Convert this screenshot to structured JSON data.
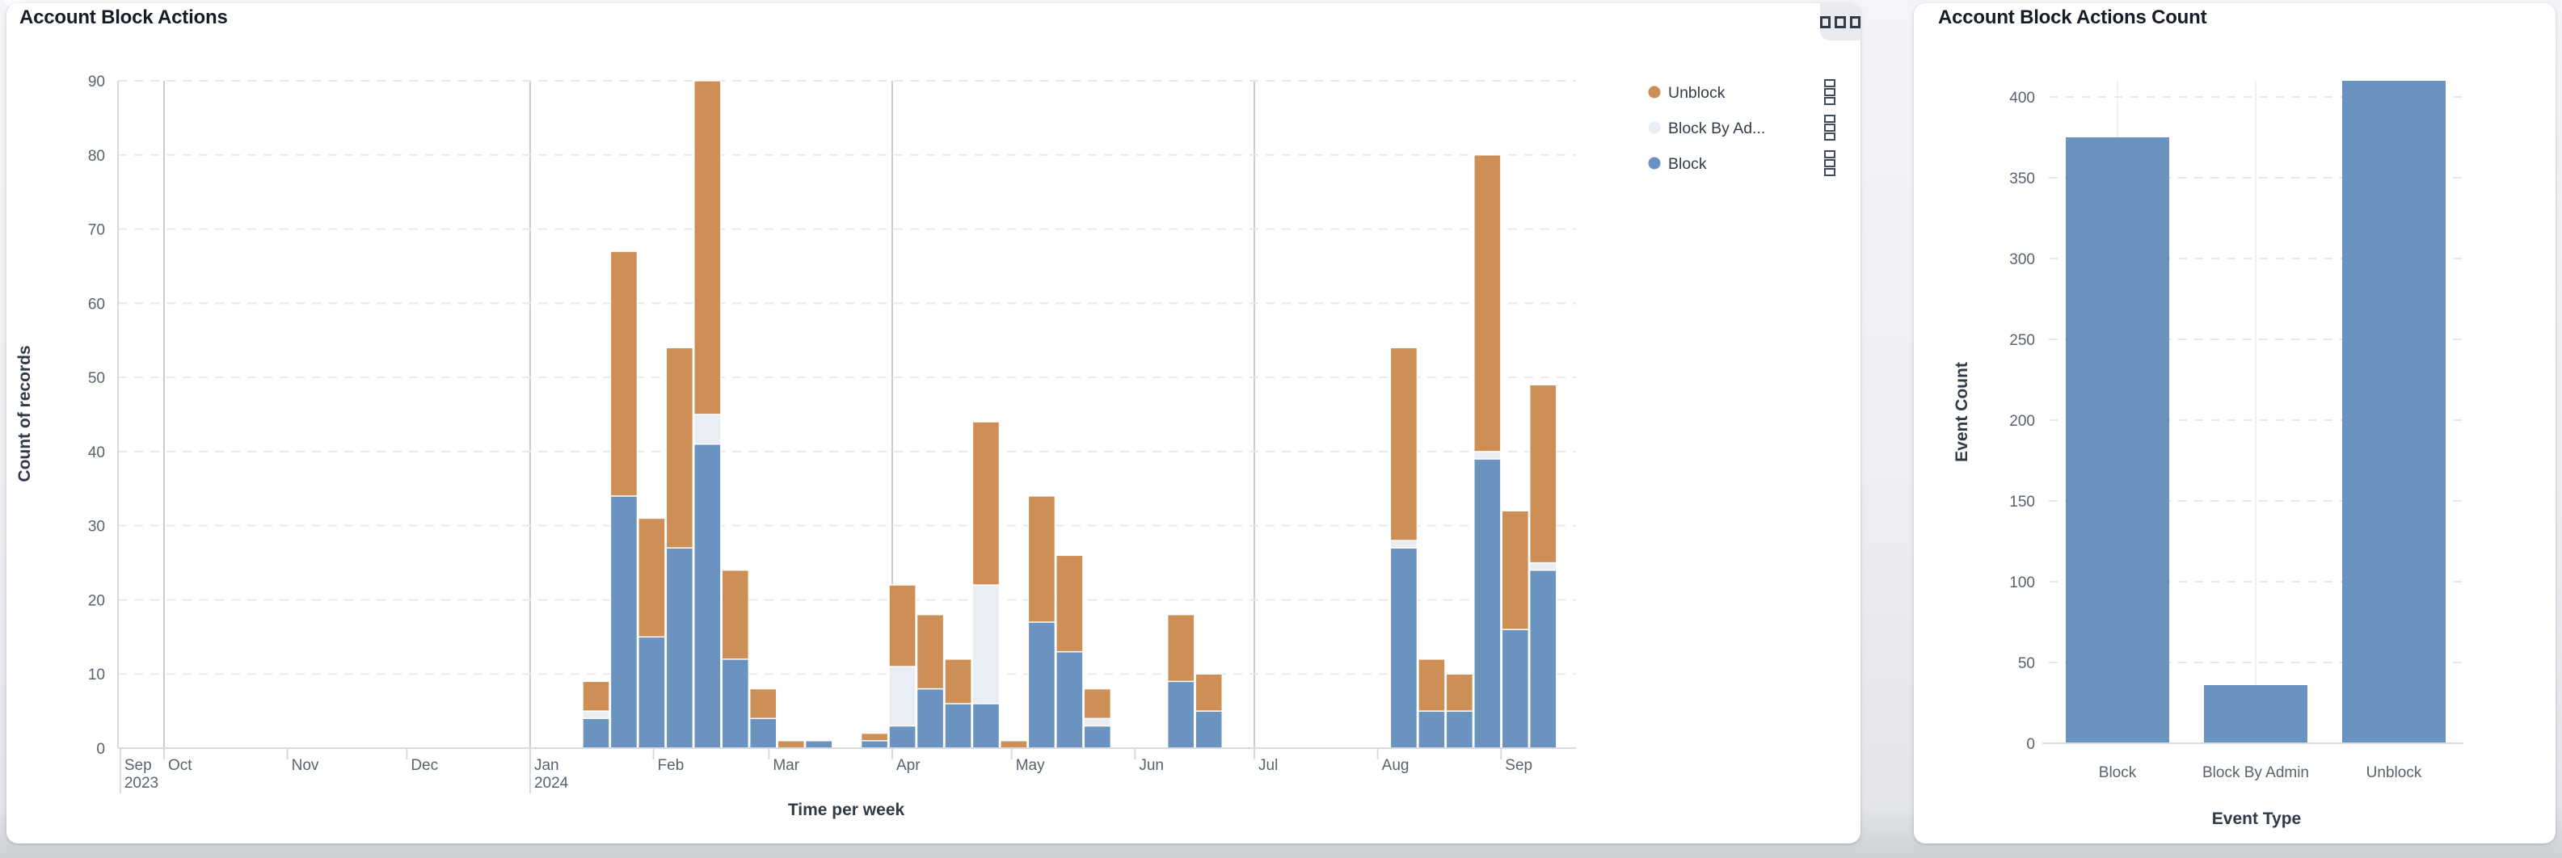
{
  "colors": {
    "block": "#6b93bf",
    "block_by_admin": "#e9edf4",
    "unblock": "#cd8f55",
    "grid_dashed": "#e6e8ec",
    "axis_line": "#d7dade",
    "quarter_line": "#c9cdd3",
    "tick_text": "#59626f",
    "legend_text": "#343c49",
    "title_text": "#161b25"
  },
  "chart_data": [
    {
      "id": "account-block-actions",
      "type": "bar",
      "stacked": true,
      "title": "Account Block Actions",
      "xlabel": "Time per week",
      "ylabel": "Count of records",
      "ylim": [
        0,
        90
      ],
      "yticks": [
        0,
        10,
        20,
        30,
        40,
        50,
        60,
        70,
        80,
        90
      ],
      "grid": true,
      "legend_position": "right",
      "series": [
        {
          "name": "Block",
          "color": "#6b93bf"
        },
        {
          "name": "Block By Admin",
          "color": "#e9edf4"
        },
        {
          "name": "Unblock",
          "color": "#cd8f55"
        }
      ],
      "legend": [
        {
          "label": "Unblock",
          "color": "#cd8f55"
        },
        {
          "label": "Block By Ad...",
          "color": "#e9edf4"
        },
        {
          "label": "Block",
          "color": "#6b93bf"
        }
      ],
      "x_time_ticks": [
        {
          "date": "2023-09-20",
          "label": "Sep",
          "sublabel": "2023",
          "long": true
        },
        {
          "date": "2023-10-01",
          "label": "Oct"
        },
        {
          "date": "2023-11-01",
          "label": "Nov"
        },
        {
          "date": "2023-12-01",
          "label": "Dec"
        },
        {
          "date": "2024-01-01",
          "label": "Jan",
          "sublabel": "2024",
          "long": true
        },
        {
          "date": "2024-02-01",
          "label": "Feb"
        },
        {
          "date": "2024-03-01",
          "label": "Mar"
        },
        {
          "date": "2024-04-01",
          "label": "Apr"
        },
        {
          "date": "2024-05-01",
          "label": "May"
        },
        {
          "date": "2024-06-01",
          "label": "Jun"
        },
        {
          "date": "2024-07-01",
          "label": "Jul"
        },
        {
          "date": "2024-08-01",
          "label": "Aug"
        },
        {
          "date": "2024-09-01",
          "label": "Sep"
        }
      ],
      "quarter_lines": [
        "2023-10-01",
        "2024-01-01",
        "2024-04-01",
        "2024-07-01"
      ],
      "weeks": [
        {
          "week_start": "2024-01-14",
          "Block": 4,
          "Block By Admin": 1,
          "Unblock": 4
        },
        {
          "week_start": "2024-01-21",
          "Block": 34,
          "Block By Admin": 0,
          "Unblock": 33
        },
        {
          "week_start": "2024-01-28",
          "Block": 15,
          "Block By Admin": 0,
          "Unblock": 16
        },
        {
          "week_start": "2024-02-04",
          "Block": 27,
          "Block By Admin": 0,
          "Unblock": 27
        },
        {
          "week_start": "2024-02-11",
          "Block": 41,
          "Block By Admin": 4,
          "Unblock": 45
        },
        {
          "week_start": "2024-02-18",
          "Block": 12,
          "Block By Admin": 0,
          "Unblock": 12
        },
        {
          "week_start": "2024-02-25",
          "Block": 4,
          "Block By Admin": 0,
          "Unblock": 4
        },
        {
          "week_start": "2024-03-03",
          "Block": 0,
          "Block By Admin": 0,
          "Unblock": 1
        },
        {
          "week_start": "2024-03-10",
          "Block": 1,
          "Block By Admin": 0,
          "Unblock": 0
        },
        {
          "week_start": "2024-03-24",
          "Block": 1,
          "Block By Admin": 0,
          "Unblock": 1
        },
        {
          "week_start": "2024-03-31",
          "Block": 3,
          "Block By Admin": 8,
          "Unblock": 11
        },
        {
          "week_start": "2024-04-07",
          "Block": 8,
          "Block By Admin": 0,
          "Unblock": 10
        },
        {
          "week_start": "2024-04-14",
          "Block": 6,
          "Block By Admin": 0,
          "Unblock": 6
        },
        {
          "week_start": "2024-04-21",
          "Block": 6,
          "Block By Admin": 16,
          "Unblock": 22
        },
        {
          "week_start": "2024-04-28",
          "Block": 0,
          "Block By Admin": 0,
          "Unblock": 1
        },
        {
          "week_start": "2024-05-05",
          "Block": 17,
          "Block By Admin": 0,
          "Unblock": 17
        },
        {
          "week_start": "2024-05-12",
          "Block": 13,
          "Block By Admin": 0,
          "Unblock": 13
        },
        {
          "week_start": "2024-05-19",
          "Block": 3,
          "Block By Admin": 1,
          "Unblock": 4
        },
        {
          "week_start": "2024-06-09",
          "Block": 9,
          "Block By Admin": 0,
          "Unblock": 9
        },
        {
          "week_start": "2024-06-16",
          "Block": 5,
          "Block By Admin": 0,
          "Unblock": 5
        },
        {
          "week_start": "2024-08-04",
          "Block": 27,
          "Block By Admin": 1,
          "Unblock": 26
        },
        {
          "week_start": "2024-08-11",
          "Block": 5,
          "Block By Admin": 0,
          "Unblock": 7
        },
        {
          "week_start": "2024-08-18",
          "Block": 5,
          "Block By Admin": 0,
          "Unblock": 5
        },
        {
          "week_start": "2024-08-25",
          "Block": 39,
          "Block By Admin": 1,
          "Unblock": 40
        },
        {
          "week_start": "2024-09-01",
          "Block": 16,
          "Block By Admin": 0,
          "Unblock": 16
        },
        {
          "week_start": "2024-09-08",
          "Block": 24,
          "Block By Admin": 1,
          "Unblock": 24
        }
      ]
    },
    {
      "id": "account-block-actions-count",
      "type": "bar",
      "title": "Account Block Actions Count",
      "xlabel": "Event Type",
      "ylabel": "Event Count",
      "categories": [
        "Block",
        "Block By Admin",
        "Unblock"
      ],
      "values": [
        375,
        36,
        410
      ],
      "bar_color": "#6b93bf",
      "ylim": [
        0,
        410
      ],
      "yticks": [
        0,
        50,
        100,
        150,
        200,
        250,
        300,
        350,
        400
      ],
      "grid": true
    }
  ]
}
